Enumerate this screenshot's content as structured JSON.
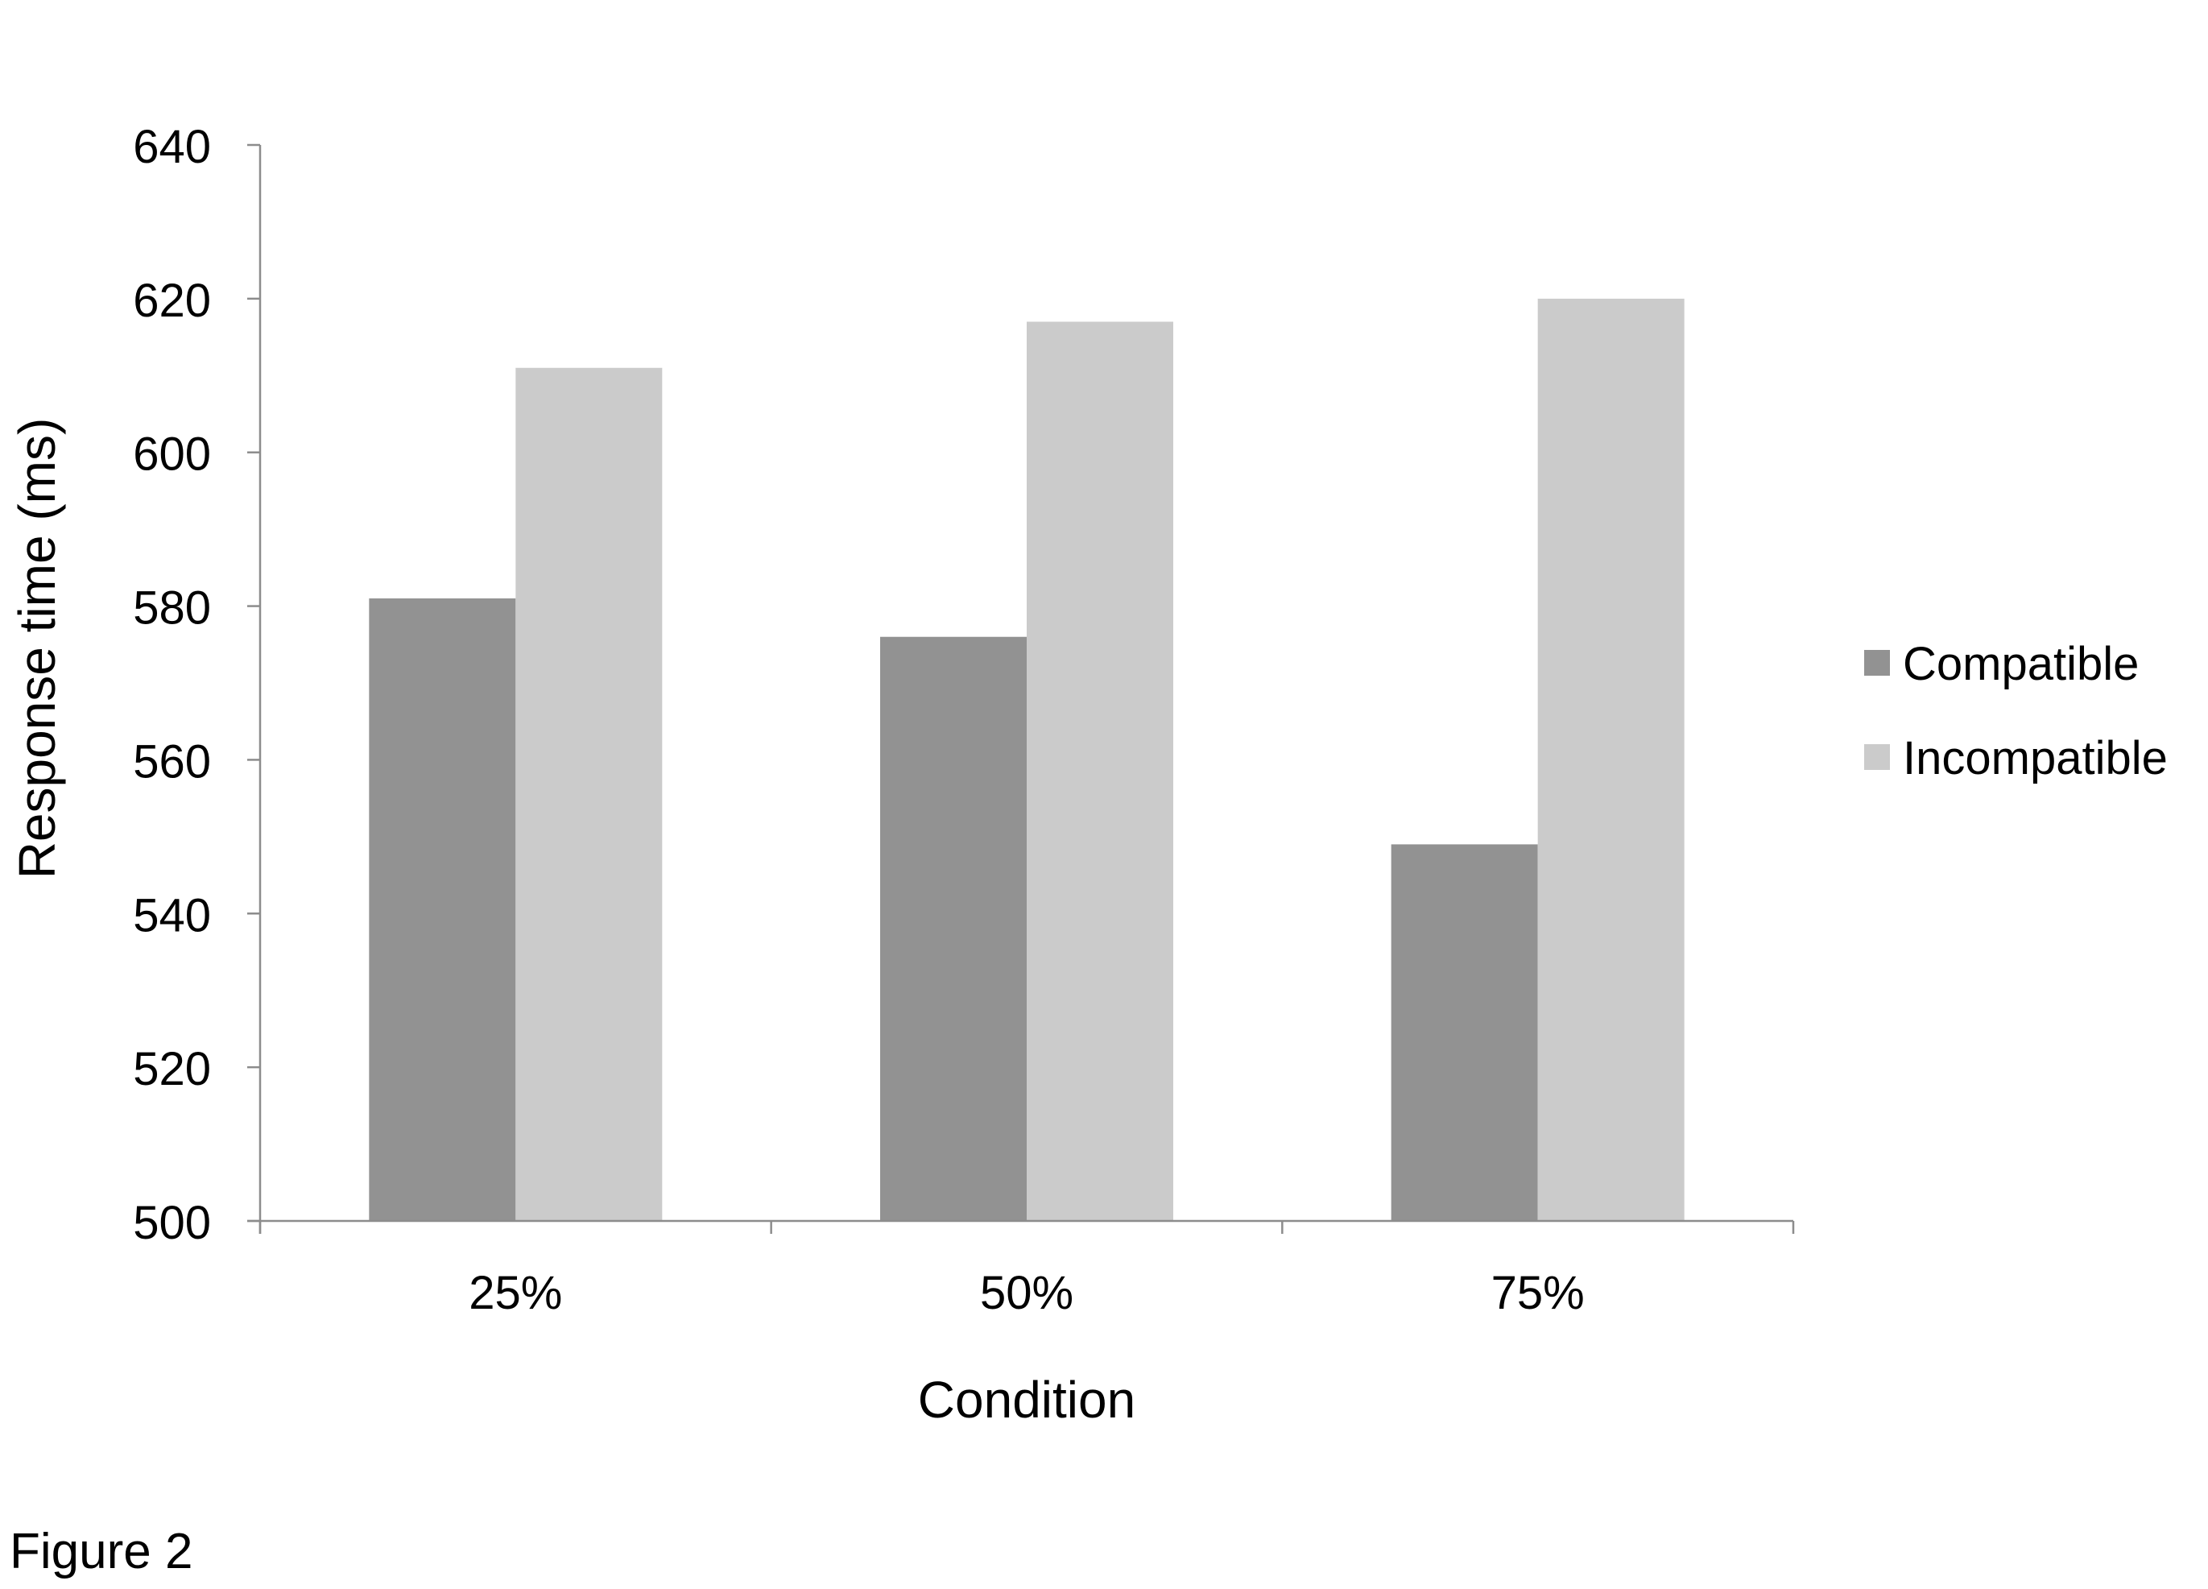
{
  "figure": {
    "caption": "Figure 2"
  },
  "colors": {
    "compatible": "#929292",
    "incompatible": "#cbcbcb",
    "axis": "#8c8c8c",
    "text": "#000000"
  },
  "chart_data": {
    "type": "bar",
    "title": "",
    "xlabel": "Condition",
    "ylabel": "Response time (ms)",
    "categories": [
      "25%",
      "50%",
      "75%"
    ],
    "series": [
      {
        "name": "Compatible",
        "values": [
          581,
          576,
          549
        ]
      },
      {
        "name": "Incompatible",
        "values": [
          611,
          617,
          620
        ]
      }
    ],
    "ylim": [
      500,
      640
    ],
    "yticks": [
      500,
      520,
      540,
      560,
      580,
      600,
      620,
      640
    ],
    "ytick_labels": [
      "500",
      "520",
      "540",
      "560",
      "580",
      "600",
      "620",
      "640"
    ],
    "grid": false,
    "legend_position": "right"
  }
}
